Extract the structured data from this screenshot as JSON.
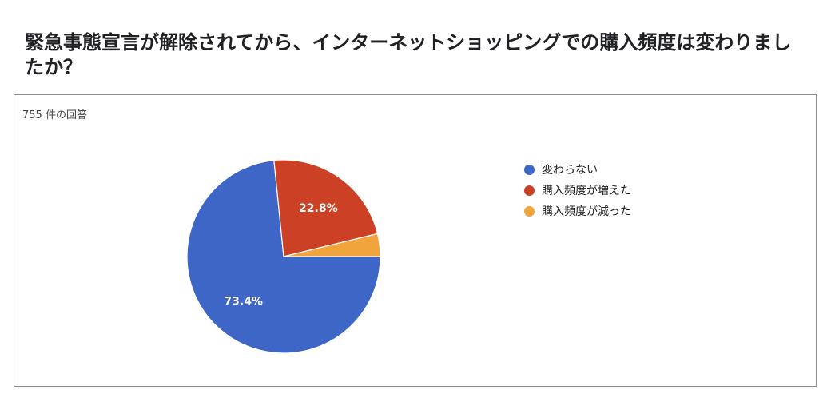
{
  "question": {
    "title": "緊急事態宣言が解除されてから、インターネットショッピングでの購入頻度は変わりましたか？"
  },
  "response_count_label": "755 件の回答",
  "chart_data": {
    "type": "pie",
    "title": "緊急事態宣言が解除されてから、インターネットショッピングでの購入頻度は変わりましたか？",
    "categories": [
      "変わらない",
      "購入頻度が増えた",
      "購入頻度が減った"
    ],
    "values": [
      73.4,
      22.8,
      3.8
    ],
    "value_labels": [
      "73.4%",
      "22.8%",
      ""
    ],
    "colors": [
      "#3d66c6",
      "#cc4125",
      "#f1a33c"
    ],
    "legend_position": "right",
    "total_responses": 755
  }
}
